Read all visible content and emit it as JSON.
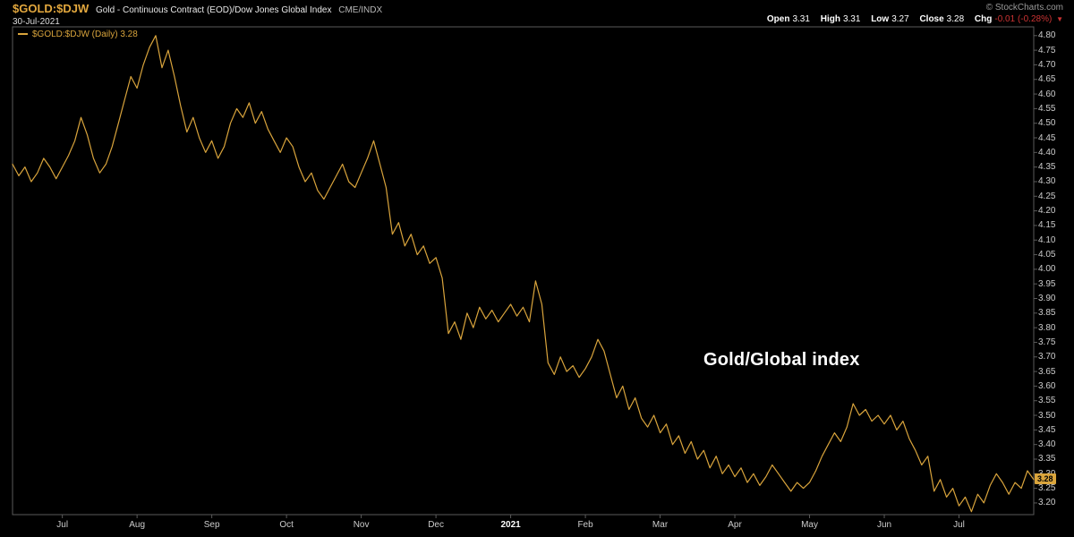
{
  "header": {
    "symbol": "$GOLD:$DJW",
    "description": "Gold - Continuous Contract (EOD)/Dow Jones Global Index",
    "exchange": "CME/INDX",
    "date": "30-Jul-2021",
    "copyright": "© StockCharts.com",
    "quote": {
      "items": [
        {
          "label": "Open",
          "value": "3.31"
        },
        {
          "label": "High",
          "value": "3.31"
        },
        {
          "label": "Low",
          "value": "3.27"
        },
        {
          "label": "Close",
          "value": "3.28"
        },
        {
          "label": "Chg",
          "value": "-0.01 (-0.28%)",
          "negative": true
        }
      ],
      "direction_icon": "▼"
    }
  },
  "legend": "$GOLD:$DJW (Daily) 3.28",
  "annotation": "Gold/Global index",
  "price_label": "3.28",
  "colors": {
    "line": "#D9A43C",
    "symbol": "#E3A83E",
    "chg_negative": "#CC3333",
    "axis_text": "#CCCCCC",
    "border": "#5A5A5A",
    "background": "#000000",
    "annotation": "#FFFFFF"
  },
  "chart_data": {
    "type": "line",
    "title": "$GOLD:$DJW (Daily)",
    "xlabel": "",
    "ylabel": "",
    "grid": false,
    "legend_position": "top-left",
    "ylim": [
      3.16,
      4.83
    ],
    "last_value": 3.28,
    "y_ticks": [
      "4.80",
      "4.75",
      "4.70",
      "4.65",
      "4.60",
      "4.55",
      "4.50",
      "4.45",
      "4.40",
      "4.35",
      "4.30",
      "4.25",
      "4.20",
      "4.15",
      "4.10",
      "4.05",
      "4.00",
      "3.95",
      "3.90",
      "3.85",
      "3.80",
      "3.75",
      "3.70",
      "3.65",
      "3.60",
      "3.55",
      "3.50",
      "3.45",
      "3.40",
      "3.35",
      "3.30",
      "3.25",
      "3.20"
    ],
    "x_ticks": [
      {
        "label": "Jul",
        "index": 8
      },
      {
        "label": "Aug",
        "index": 20
      },
      {
        "label": "Sep",
        "index": 32
      },
      {
        "label": "Oct",
        "index": 44
      },
      {
        "label": "Nov",
        "index": 56
      },
      {
        "label": "Dec",
        "index": 68
      },
      {
        "label": "2021",
        "index": 80,
        "bold": true
      },
      {
        "label": "Feb",
        "index": 92
      },
      {
        "label": "Mar",
        "index": 104
      },
      {
        "label": "Apr",
        "index": 116
      },
      {
        "label": "May",
        "index": 128
      },
      {
        "label": "Jun",
        "index": 140
      },
      {
        "label": "Jul",
        "index": 152
      }
    ],
    "series": [
      {
        "name": "$GOLD:$DJW",
        "color": "#D9A43C",
        "values": [
          4.36,
          4.32,
          4.35,
          4.3,
          4.33,
          4.38,
          4.35,
          4.31,
          4.35,
          4.39,
          4.44,
          4.52,
          4.46,
          4.38,
          4.33,
          4.36,
          4.42,
          4.5,
          4.58,
          4.66,
          4.62,
          4.7,
          4.76,
          4.8,
          4.69,
          4.75,
          4.66,
          4.56,
          4.47,
          4.52,
          4.45,
          4.4,
          4.44,
          4.38,
          4.42,
          4.5,
          4.55,
          4.52,
          4.57,
          4.5,
          4.54,
          4.48,
          4.44,
          4.4,
          4.45,
          4.42,
          4.35,
          4.3,
          4.33,
          4.27,
          4.24,
          4.28,
          4.32,
          4.36,
          4.3,
          4.28,
          4.33,
          4.38,
          4.44,
          4.36,
          4.28,
          4.12,
          4.16,
          4.08,
          4.12,
          4.05,
          4.08,
          4.02,
          4.04,
          3.97,
          3.78,
          3.82,
          3.76,
          3.85,
          3.8,
          3.87,
          3.83,
          3.86,
          3.82,
          3.85,
          3.88,
          3.84,
          3.87,
          3.82,
          3.96,
          3.88,
          3.68,
          3.64,
          3.7,
          3.65,
          3.67,
          3.63,
          3.66,
          3.7,
          3.76,
          3.72,
          3.64,
          3.56,
          3.6,
          3.52,
          3.56,
          3.49,
          3.46,
          3.5,
          3.44,
          3.47,
          3.4,
          3.43,
          3.37,
          3.41,
          3.35,
          3.38,
          3.32,
          3.36,
          3.3,
          3.33,
          3.29,
          3.32,
          3.27,
          3.3,
          3.26,
          3.29,
          3.33,
          3.3,
          3.27,
          3.24,
          3.27,
          3.25,
          3.27,
          3.31,
          3.36,
          3.4,
          3.44,
          3.41,
          3.46,
          3.54,
          3.5,
          3.52,
          3.48,
          3.5,
          3.47,
          3.5,
          3.45,
          3.48,
          3.42,
          3.38,
          3.33,
          3.36,
          3.24,
          3.28,
          3.22,
          3.25,
          3.19,
          3.22,
          3.17,
          3.23,
          3.2,
          3.26,
          3.3,
          3.27,
          3.23,
          3.27,
          3.25,
          3.31,
          3.28
        ]
      }
    ]
  }
}
